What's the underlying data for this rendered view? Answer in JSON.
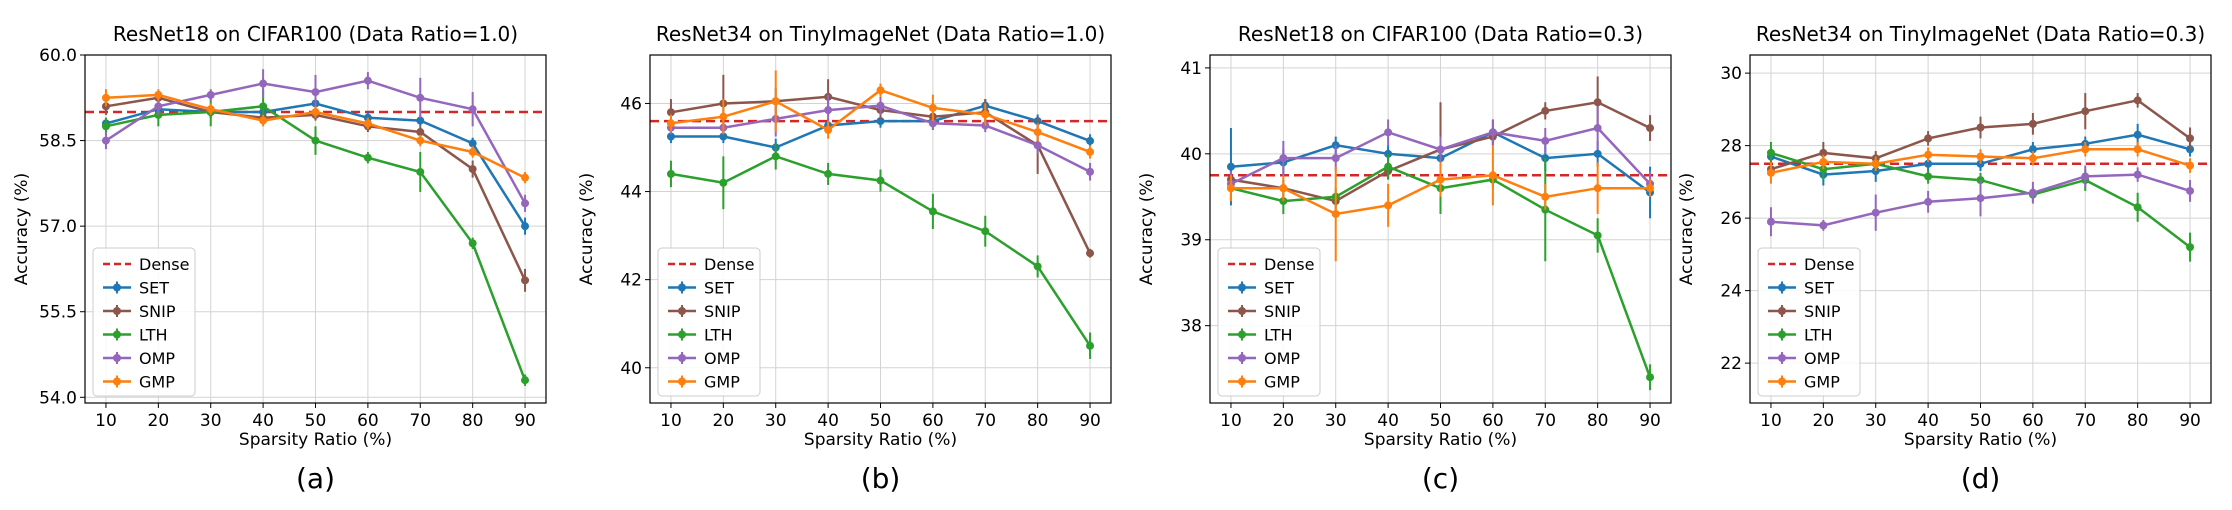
{
  "colors": {
    "Dense": "#d62728",
    "SET": "#1f77b4",
    "SNIP": "#8c564b",
    "LTH": "#2ca02c",
    "OMP": "#9467bd",
    "GMP": "#ff7f0e"
  },
  "legend_labels": [
    "Dense",
    "SET",
    "SNIP",
    "LTH",
    "OMP",
    "GMP"
  ],
  "chart_data": [
    {
      "type": "line",
      "title": "ResNet18 on CIFAR100 (Data Ratio=1.0)",
      "xlabel": "Sparsity Ratio (%)",
      "ylabel": "Accuracy (%)",
      "caption": "(a)",
      "x": [
        10,
        20,
        30,
        40,
        50,
        60,
        70,
        80,
        90
      ],
      "xlim": [
        6,
        94
      ],
      "ylim": [
        53.9,
        60.0
      ],
      "yticks": [
        54.0,
        55.5,
        57.0,
        58.5,
        60.0
      ],
      "ytick_labels": [
        "54.0",
        "55.5",
        "57.0",
        "58.5",
        "60.0"
      ],
      "dense": 59.0,
      "legend_position": "lower-left",
      "series": [
        {
          "name": "SET",
          "values": [
            58.8,
            59.05,
            59.0,
            59.0,
            59.15,
            58.9,
            58.85,
            58.45,
            57.0
          ],
          "err": [
            0.1,
            0.1,
            0.1,
            0.1,
            0.1,
            0.1,
            0.1,
            0.1,
            0.15
          ]
        },
        {
          "name": "SNIP",
          "values": [
            59.1,
            59.25,
            59.0,
            58.9,
            58.95,
            58.75,
            58.65,
            58.0,
            56.05
          ],
          "err": [
            0.15,
            0.1,
            0.1,
            0.1,
            0.1,
            0.1,
            0.1,
            0.15,
            0.2
          ]
        },
        {
          "name": "LTH",
          "values": [
            58.75,
            58.95,
            59.0,
            59.1,
            58.5,
            58.2,
            57.95,
            56.7,
            54.3
          ],
          "err": [
            0.15,
            0.2,
            0.25,
            0.3,
            0.25,
            0.1,
            0.35,
            0.1,
            0.1
          ]
        },
        {
          "name": "OMP",
          "values": [
            58.5,
            59.1,
            59.3,
            59.5,
            59.35,
            59.55,
            59.25,
            59.05,
            57.4
          ],
          "err": [
            0.15,
            0.15,
            0.1,
            0.25,
            0.3,
            0.15,
            0.35,
            0.3,
            0.15
          ]
        },
        {
          "name": "GMP",
          "values": [
            59.25,
            59.3,
            59.05,
            58.85,
            59.0,
            58.8,
            58.5,
            58.3,
            57.85
          ],
          "err": [
            0.15,
            0.1,
            0.1,
            0.1,
            0.1,
            0.1,
            0.1,
            0.1,
            0.1
          ]
        }
      ]
    },
    {
      "type": "line",
      "title": "ResNet34 on TinyImageNet (Data Ratio=1.0)",
      "xlabel": "Sparsity Ratio (%)",
      "ylabel": "Accuracy (%)",
      "caption": "(b)",
      "x": [
        10,
        20,
        30,
        40,
        50,
        60,
        70,
        80,
        90
      ],
      "xlim": [
        6,
        94
      ],
      "ylim": [
        39.2,
        47.1
      ],
      "yticks": [
        40,
        42,
        44,
        46
      ],
      "ytick_labels": [
        "40",
        "42",
        "44",
        "46"
      ],
      "dense": 45.6,
      "legend_position": "lower-left",
      "series": [
        {
          "name": "SET",
          "values": [
            45.25,
            45.25,
            45.0,
            45.5,
            45.6,
            45.6,
            45.95,
            45.6,
            45.15
          ],
          "err": [
            0.15,
            0.15,
            0.2,
            0.15,
            0.15,
            0.15,
            0.15,
            0.15,
            0.15
          ]
        },
        {
          "name": "SNIP",
          "values": [
            45.8,
            46.0,
            46.05,
            46.15,
            45.85,
            45.7,
            45.8,
            45.05,
            42.6
          ],
          "err": [
            0.3,
            0.65,
            0.3,
            0.4,
            0.2,
            0.3,
            0.3,
            0.65,
            0.1
          ]
        },
        {
          "name": "LTH",
          "values": [
            44.4,
            44.2,
            44.8,
            44.4,
            44.25,
            43.55,
            43.1,
            42.3,
            40.5
          ],
          "err": [
            0.3,
            0.6,
            0.3,
            0.25,
            0.25,
            0.4,
            0.35,
            0.25,
            0.3
          ]
        },
        {
          "name": "OMP",
          "values": [
            45.45,
            45.45,
            45.65,
            45.85,
            45.95,
            45.55,
            45.5,
            45.05,
            44.45
          ],
          "err": [
            0.15,
            0.15,
            0.4,
            0.35,
            0.2,
            0.15,
            0.15,
            0.2,
            0.2
          ]
        },
        {
          "name": "GMP",
          "values": [
            45.55,
            45.7,
            46.05,
            45.4,
            46.3,
            45.9,
            45.75,
            45.35,
            44.9
          ],
          "err": [
            0.2,
            0.4,
            0.7,
            0.2,
            0.15,
            0.3,
            0.25,
            0.2,
            0.15
          ]
        }
      ]
    },
    {
      "type": "line",
      "title": "ResNet18 on CIFAR100 (Data Ratio=0.3)",
      "xlabel": "Sparsity Ratio (%)",
      "ylabel": "Accuracy (%)",
      "caption": "(c)",
      "x": [
        10,
        20,
        30,
        40,
        50,
        60,
        70,
        80,
        90
      ],
      "xlim": [
        6,
        94
      ],
      "ylim": [
        37.1,
        41.15
      ],
      "yticks": [
        38,
        39,
        40,
        41
      ],
      "ytick_labels": [
        "38",
        "39",
        "40",
        "41"
      ],
      "dense": 39.75,
      "legend_position": "lower-left",
      "series": [
        {
          "name": "SET",
          "values": [
            39.85,
            39.9,
            40.1,
            40.0,
            39.95,
            40.25,
            39.95,
            40.0,
            39.55
          ],
          "err": [
            0.45,
            0.15,
            0.1,
            0.1,
            0.1,
            0.15,
            0.15,
            0.15,
            0.3
          ]
        },
        {
          "name": "SNIP",
          "values": [
            39.7,
            39.6,
            39.45,
            39.8,
            40.05,
            40.2,
            40.5,
            40.6,
            40.3
          ],
          "err": [
            0.1,
            0.1,
            0.1,
            0.1,
            0.55,
            0.1,
            0.1,
            0.3,
            0.15
          ]
        },
        {
          "name": "LTH",
          "values": [
            39.6,
            39.45,
            39.5,
            39.85,
            39.6,
            39.7,
            39.35,
            39.05,
            37.4
          ],
          "err": [
            0.15,
            0.15,
            0.1,
            0.15,
            0.3,
            0.1,
            0.6,
            0.2,
            0.15
          ]
        },
        {
          "name": "OMP",
          "values": [
            39.65,
            39.95,
            39.95,
            40.25,
            40.05,
            40.25,
            40.15,
            40.3,
            39.65
          ],
          "err": [
            0.15,
            0.2,
            0.15,
            0.15,
            0.15,
            0.15,
            0.15,
            0.25,
            0.15
          ]
        },
        {
          "name": "GMP",
          "values": [
            39.6,
            39.6,
            39.3,
            39.4,
            39.7,
            39.75,
            39.5,
            39.6,
            39.6
          ],
          "err": [
            0.15,
            0.15,
            0.55,
            0.25,
            0.2,
            0.35,
            0.15,
            0.3,
            0.1
          ]
        }
      ]
    },
    {
      "type": "line",
      "title": "ResNet34 on TinyImageNet (Data Ratio=0.3)",
      "xlabel": "Sparsity Ratio (%)",
      "ylabel": "Accuracy (%)",
      "caption": "(d)",
      "x": [
        10,
        20,
        30,
        40,
        50,
        60,
        70,
        80,
        90
      ],
      "xlim": [
        6,
        94
      ],
      "ylim": [
        20.9,
        30.5
      ],
      "yticks": [
        22,
        24,
        26,
        28,
        30
      ],
      "ytick_labels": [
        "22",
        "24",
        "26",
        "28",
        "30"
      ],
      "dense": 27.5,
      "legend_position": "lower-left",
      "series": [
        {
          "name": "SET",
          "values": [
            27.7,
            27.2,
            27.3,
            27.5,
            27.5,
            27.9,
            28.05,
            28.3,
            27.9
          ],
          "err": [
            0.2,
            0.3,
            0.3,
            0.2,
            0.2,
            0.2,
            0.2,
            0.3,
            0.2
          ]
        },
        {
          "name": "SNIP",
          "values": [
            27.35,
            27.8,
            27.65,
            28.2,
            28.5,
            28.6,
            28.95,
            29.25,
            28.2
          ],
          "err": [
            0.2,
            0.3,
            0.2,
            0.2,
            0.3,
            0.3,
            0.5,
            0.2,
            0.3
          ]
        },
        {
          "name": "LTH",
          "values": [
            27.8,
            27.35,
            27.5,
            27.15,
            27.05,
            26.65,
            27.05,
            26.3,
            25.2
          ],
          "err": [
            0.3,
            0.3,
            0.2,
            0.2,
            0.2,
            0.2,
            0.3,
            0.4,
            0.4
          ]
        },
        {
          "name": "OMP",
          "values": [
            25.9,
            25.8,
            26.15,
            26.45,
            26.55,
            26.7,
            27.15,
            27.2,
            26.75
          ],
          "err": [
            0.4,
            0.15,
            0.5,
            0.3,
            0.5,
            0.3,
            0.3,
            0.2,
            0.3
          ]
        },
        {
          "name": "GMP",
          "values": [
            27.25,
            27.55,
            27.5,
            27.75,
            27.7,
            27.65,
            27.9,
            27.9,
            27.45
          ],
          "err": [
            0.3,
            0.2,
            0.2,
            0.2,
            0.2,
            0.2,
            0.2,
            0.2,
            0.2
          ]
        }
      ]
    }
  ]
}
